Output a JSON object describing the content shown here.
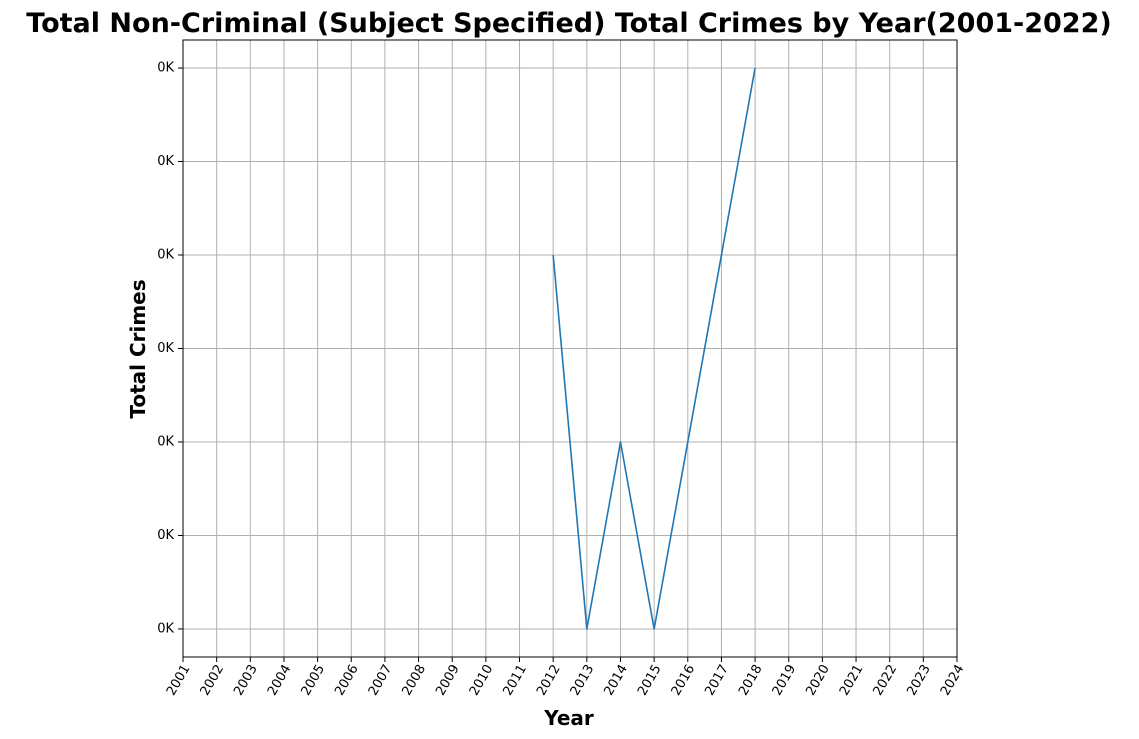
{
  "chart_data": {
    "type": "line",
    "title": "Total Non-Criminal (Subject Specified) Total Crimes by Year(2001-2022)",
    "xlabel": "Year",
    "ylabel": "Total Crimes",
    "grid": true,
    "xlim": [
      2001,
      2024
    ],
    "x_ticks": [
      "2001",
      "2002",
      "2003",
      "2004",
      "2005",
      "2006",
      "2007",
      "2008",
      "2009",
      "2010",
      "2011",
      "2012",
      "2013",
      "2014",
      "2015",
      "2016",
      "2017",
      "2018",
      "2019",
      "2020",
      "2021",
      "2022",
      "2023",
      "2024"
    ],
    "ylim": [
      0.7,
      7.3
    ],
    "y_tick_values": [
      1,
      2,
      3,
      4,
      5,
      6,
      7
    ],
    "y_tick_labels": [
      "0K",
      "0K",
      "0K",
      "0K",
      "0K",
      "0K",
      "0K"
    ],
    "series": [
      {
        "color": "#1f77b4",
        "x": [
          2012,
          2013,
          2014,
          2015,
          2018
        ],
        "y": [
          5,
          1,
          3,
          1,
          7
        ]
      }
    ]
  }
}
